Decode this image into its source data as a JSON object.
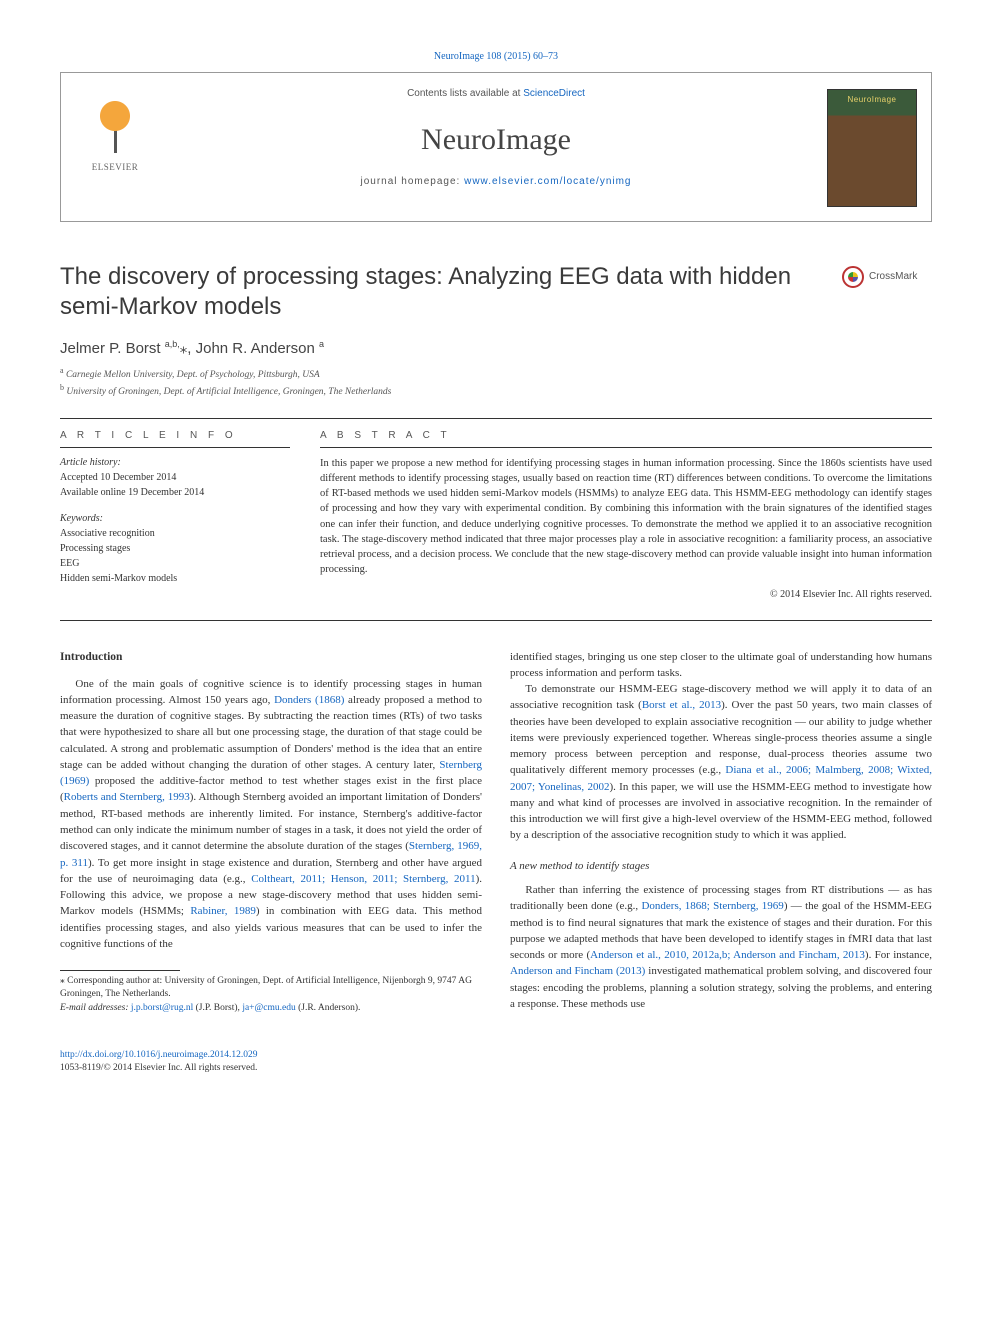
{
  "top_citation": "NeuroImage 108 (2015) 60–73",
  "header": {
    "contents_prefix": "Contents lists available at ",
    "contents_link": "ScienceDirect",
    "journal_name": "NeuroImage",
    "homepage_prefix": "journal homepage: ",
    "homepage_url": "www.elsevier.com/locate/ynimg",
    "publisher": "ELSEVIER",
    "thumb_label": "NeuroImage"
  },
  "title": "The discovery of processing stages: Analyzing EEG data with hidden semi-Markov models",
  "crossmark_label": "CrossMark",
  "authors_html": "Jelmer P. Borst ",
  "author1_sup": "a,b,",
  "author1_star": "⁎",
  "author_sep": ", John R. Anderson ",
  "author2_sup": "a",
  "affiliations": {
    "a": "Carnegie Mellon University, Dept. of Psychology, Pittsburgh, USA",
    "b": "University of Groningen, Dept. of Artificial Intelligence, Groningen, The Netherlands"
  },
  "article_info": {
    "heading": "A R T I C L E   I N F O",
    "history_label": "Article history:",
    "accepted": "Accepted 10 December 2014",
    "online": "Available online 19 December 2014",
    "keywords_label": "Keywords:",
    "keywords": [
      "Associative recognition",
      "Processing stages",
      "EEG",
      "Hidden semi-Markov models"
    ]
  },
  "abstract": {
    "heading": "A B S T R A C T",
    "text": "In this paper we propose a new method for identifying processing stages in human information processing. Since the 1860s scientists have used different methods to identify processing stages, usually based on reaction time (RT) differences between conditions. To overcome the limitations of RT-based methods we used hidden semi-Markov models (HSMMs) to analyze EEG data. This HSMM-EEG methodology can identify stages of processing and how they vary with experimental condition. By combining this information with the brain signatures of the identified stages one can infer their function, and deduce underlying cognitive processes. To demonstrate the method we applied it to an associative recognition task. The stage-discovery method indicated that three major processes play a role in associative recognition: a familiarity process, an associative retrieval process, and a decision process. We conclude that the new stage-discovery method can provide valuable insight into human information processing.",
    "copyright": "© 2014 Elsevier Inc. All rights reserved."
  },
  "intro_heading": "Introduction",
  "intro_p1a": "One of the main goals of cognitive science is to identify processing stages in human information processing. Almost 150 years ago, ",
  "intro_link1": "Donders (1868)",
  "intro_p1b": " already proposed a method to measure the duration of cognitive stages. By subtracting the reaction times (RTs) of two tasks that were hypothesized to share all but one processing stage, the duration of that stage could be calculated. A strong and problematic assumption of Donders' method is the idea that an entire stage can be added without changing the duration of other stages. A century later, ",
  "intro_link2": "Sternberg (1969)",
  "intro_p1c": " proposed the additive-factor method to test whether stages exist in the first place (",
  "intro_link3": "Roberts and Sternberg, 1993",
  "intro_p1d": "). Although Sternberg avoided an important limitation of Donders' method, RT-based methods are inherently limited. For instance, Sternberg's additive-factor method can only indicate the minimum number of stages in a task, it does not yield the order of discovered stages, and it cannot determine the absolute duration of the stages (",
  "intro_link4": "Sternberg, 1969, p. 311",
  "intro_p1e": "). To get more insight in stage existence and duration, Sternberg and other have argued for the use of neuroimaging data (e.g., ",
  "intro_link5": "Coltheart, 2011; Henson, 2011; Sternberg, 2011",
  "intro_p1f": "). Following this advice, we propose a new stage-discovery method that uses hidden semi-Markov models (HSMMs; ",
  "intro_link6": "Rabiner, 1989",
  "intro_p1g": ") in combination with EEG data. This method identifies processing stages, and also yields various measures that can be used to infer the cognitive functions of the ",
  "intro_p1h": "identified stages, bringing us one step closer to the ultimate goal of understanding how humans process information and perform tasks.",
  "intro_p2a": "To demonstrate our HSMM-EEG stage-discovery method we will apply it to data of an associative recognition task (",
  "intro_link7": "Borst et al., 2013",
  "intro_p2b": "). Over the past 50 years, two main classes of theories have been developed to explain associative recognition — our ability to judge whether items were previously experienced together. Whereas single-process theories assume a single memory process between perception and response, dual-process theories assume two qualitatively different memory processes (e.g., ",
  "intro_link8": "Diana et al., 2006; Malmberg, 2008; Wixted, 2007; Yonelinas, 2002",
  "intro_p2c": "). In this paper, we will use the HSMM-EEG method to investigate how many and what kind of processes are involved in associative recognition. In the remainder of this introduction we will first give a high-level overview of the HSMM-EEG method, followed by a description of the associative recognition study to which it was applied.",
  "subhead_text": "A new method to identify stages",
  "intro_p3a": "Rather than inferring the existence of processing stages from RT distributions — as has traditionally been done (e.g., ",
  "intro_link9": "Donders, 1868; Sternberg, 1969",
  "intro_p3b": ") — the goal of the HSMM-EEG method is to find neural signatures that mark the existence of stages and their duration. For this purpose we adapted methods that have been developed to identify stages in fMRI data that last seconds or more (",
  "intro_link10": "Anderson et al., 2010, 2012a,b; Anderson and Fincham, 2013",
  "intro_p3c": "). For instance, ",
  "intro_link11": "Anderson and Fincham (2013)",
  "intro_p3d": " investigated mathematical problem solving, and discovered four stages: encoding the problems, planning a solution strategy, solving the problems, and entering a response. These methods use",
  "footnotes": {
    "corr_label": "⁎",
    "corr_text": " Corresponding author at: University of Groningen, Dept. of Artificial Intelligence, Nijenborgh 9, 9747 AG Groningen, The Netherlands.",
    "email_label": "E-mail addresses: ",
    "email1": "j.p.borst@rug.nl",
    "email1_who": " (J.P. Borst), ",
    "email2": "ja+@cmu.edu",
    "email2_who": " (J.R. Anderson)."
  },
  "footer": {
    "doi": "http://dx.doi.org/10.1016/j.neuroimage.2014.12.029",
    "issn_line": "1053-8119/© 2014 Elsevier Inc. All rights reserved."
  }
}
